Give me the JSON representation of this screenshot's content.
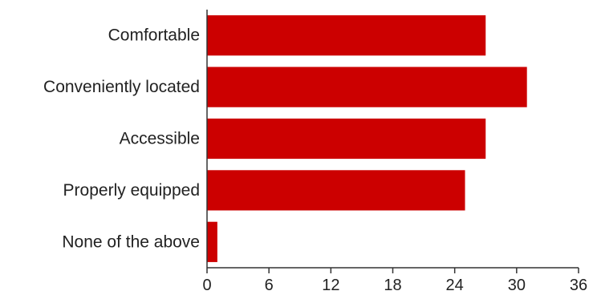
{
  "chart_data": {
    "type": "bar",
    "orientation": "horizontal",
    "categories": [
      "Comfortable",
      "Conveniently located",
      "Accessible",
      "Properly equipped",
      "None of the above"
    ],
    "values": [
      27,
      31,
      27,
      25,
      1
    ],
    "xlim": [
      0,
      36
    ],
    "xticks": [
      "0",
      "6",
      "12",
      "18",
      "24",
      "30",
      "36"
    ],
    "grid": false,
    "legend": "none",
    "bar_color": "#cc0000"
  }
}
